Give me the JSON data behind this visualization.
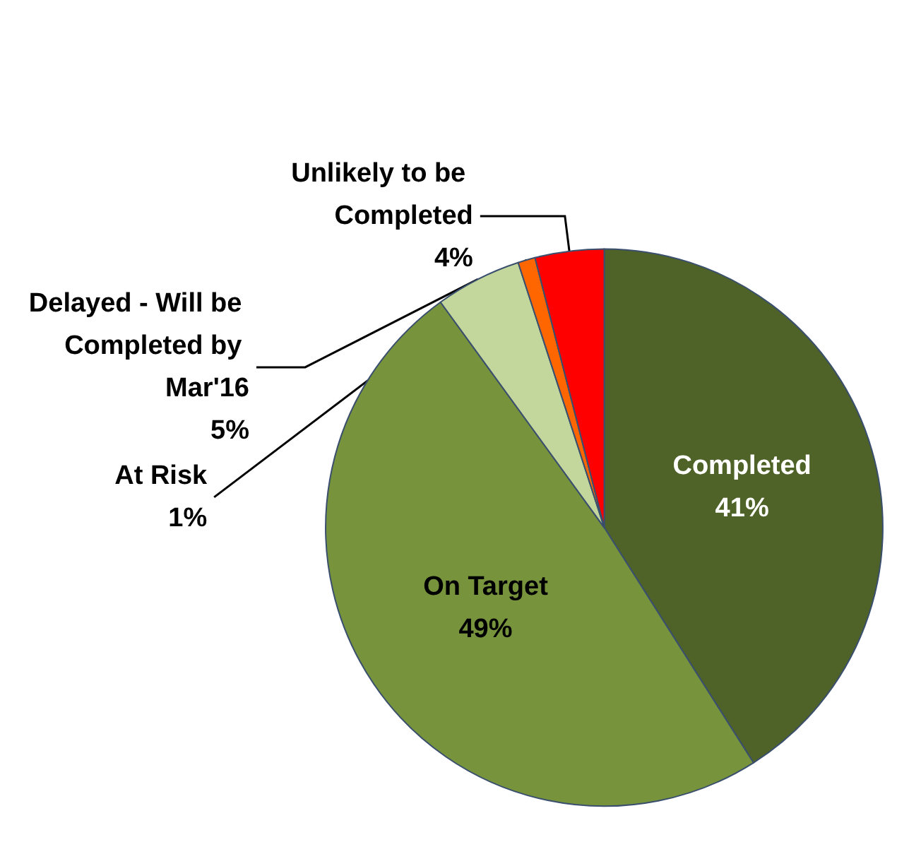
{
  "chart_data": {
    "type": "pie",
    "categories": [
      "Completed",
      "On Target",
      "Delayed - Will be Completed by Mar'16",
      "At Risk",
      "Unlikely to be Completed"
    ],
    "values": [
      41,
      49,
      5,
      1,
      4
    ],
    "colors": [
      "#4f6228",
      "#77933c",
      "#c3d69b",
      "#ff6600",
      "#ff0000"
    ],
    "value_labels": [
      "41%",
      "49%",
      "5%",
      "1%",
      "4%"
    ],
    "legend": false
  }
}
